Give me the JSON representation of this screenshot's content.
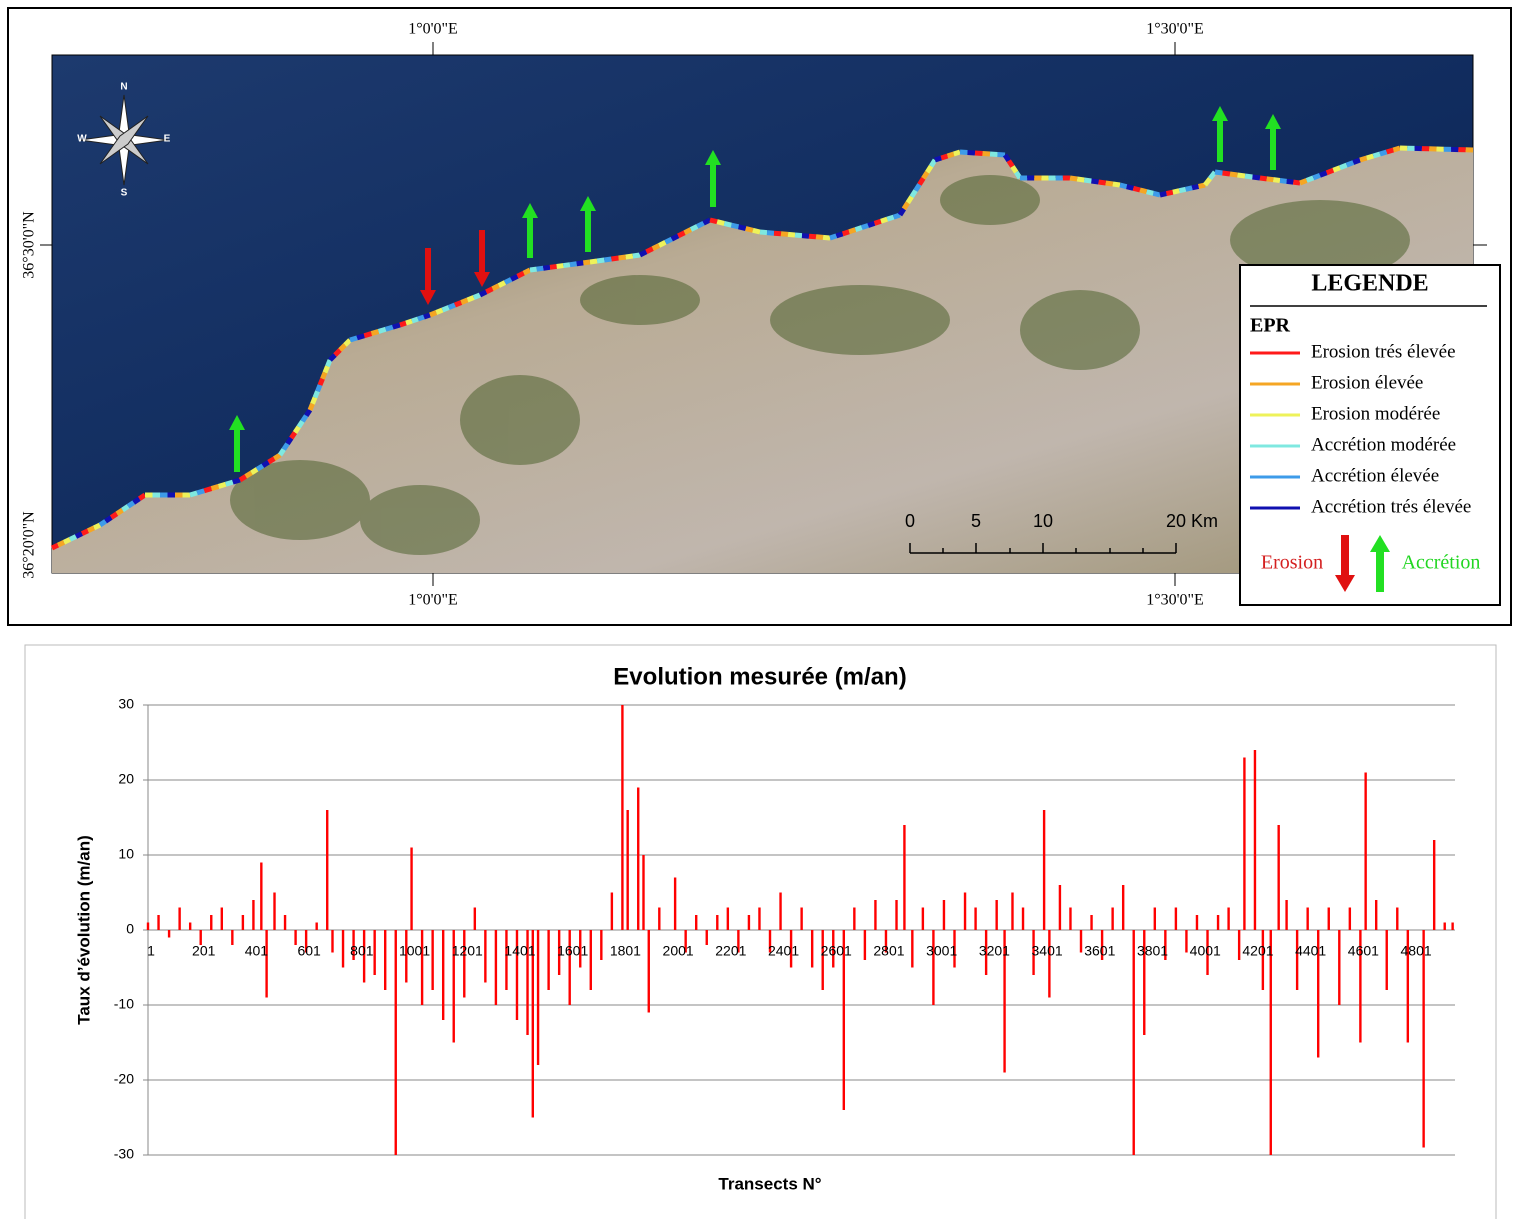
{
  "map": {
    "top_labels": [
      "1°0'0\"E",
      "1°30'0\"E"
    ],
    "bottom_labels": [
      "1°0'0\"E",
      "1°30'0\"E"
    ],
    "left_labels": [
      "36°30'0\"N",
      "36°20'0\"N"
    ],
    "compass": [
      "N",
      "S",
      "E",
      "W"
    ],
    "scale_labels": [
      "0",
      "5",
      "10",
      "20 Km"
    ],
    "legend": {
      "title": "LEGENDE",
      "subtitle": "EPR",
      "items": [
        {
          "label": "Erosion trés élevée",
          "color": "#ff1a1a"
        },
        {
          "label": "Erosion élevée",
          "color": "#f5a623"
        },
        {
          "label": "Erosion modérée",
          "color": "#eef25a"
        },
        {
          "label": "Accrétion modérée",
          "color": "#7fe8e0"
        },
        {
          "label": "Accrétion élevée",
          "color": "#3d9be9"
        },
        {
          "label": "Accrétion trés élevée",
          "color": "#1010b0"
        }
      ],
      "erosion": "Erosion",
      "accretion": "Accrétion"
    }
  },
  "chart_data": {
    "type": "bar",
    "title": "Evolution mesurée (m/an)",
    "x_label": "Transects N°",
    "y_label": "Taux d’évolution (m/an)",
    "color": "#ff0000",
    "grid": true,
    "xlim": [
      1,
      4960
    ],
    "xticks": [
      1,
      201,
      401,
      601,
      801,
      1001,
      1201,
      1401,
      1601,
      1801,
      2001,
      2201,
      2401,
      2601,
      2801,
      3001,
      3201,
      3401,
      3601,
      3801,
      4001,
      4201,
      4401,
      4601,
      4801
    ],
    "ylim": [
      -30,
      30
    ],
    "yticks": [
      -30,
      -20,
      -10,
      0,
      10,
      20,
      30
    ],
    "x": [
      1,
      41,
      81,
      121,
      161,
      201,
      241,
      281,
      321,
      361,
      401,
      431,
      451,
      481,
      521,
      561,
      601,
      641,
      681,
      701,
      741,
      781,
      821,
      861,
      901,
      941,
      981,
      1001,
      1041,
      1081,
      1121,
      1161,
      1201,
      1241,
      1281,
      1321,
      1361,
      1401,
      1441,
      1461,
      1481,
      1521,
      1561,
      1601,
      1641,
      1681,
      1721,
      1761,
      1801,
      1821,
      1861,
      1881,
      1901,
      1941,
      2001,
      2041,
      2081,
      2121,
      2161,
      2201,
      2241,
      2281,
      2321,
      2361,
      2401,
      2441,
      2481,
      2521,
      2561,
      2601,
      2641,
      2681,
      2721,
      2761,
      2801,
      2841,
      2871,
      2901,
      2941,
      2981,
      3021,
      3061,
      3101,
      3141,
      3181,
      3221,
      3251,
      3281,
      3321,
      3361,
      3401,
      3421,
      3461,
      3501,
      3541,
      3581,
      3621,
      3661,
      3701,
      3741,
      3781,
      3821,
      3861,
      3901,
      3941,
      3981,
      4021,
      4061,
      4101,
      4141,
      4161,
      4201,
      4231,
      4261,
      4291,
      4321,
      4361,
      4401,
      4441,
      4481,
      4521,
      4561,
      4601,
      4621,
      4661,
      4701,
      4741,
      4781,
      4841,
      4881,
      4921,
      4951
    ],
    "values": [
      1,
      2,
      -1,
      3,
      1,
      -2,
      2,
      3,
      -2,
      2,
      4,
      9,
      -9,
      5,
      2,
      -2,
      -3,
      1,
      16,
      -3,
      -5,
      -4,
      -7,
      -6,
      -8,
      -30,
      -7,
      11,
      -10,
      -8,
      -12,
      -15,
      -9,
      3,
      -7,
      -10,
      -8,
      -12,
      -14,
      -25,
      -18,
      -8,
      -6,
      -10,
      -5,
      -8,
      -4,
      5,
      30,
      16,
      19,
      10,
      -11,
      3,
      7,
      -3,
      2,
      -2,
      2,
      3,
      -3,
      2,
      3,
      -3,
      5,
      -5,
      3,
      -5,
      -8,
      -5,
      -24,
      3,
      -4,
      4,
      -3,
      4,
      14,
      -5,
      3,
      -10,
      4,
      -5,
      5,
      3,
      -6,
      4,
      -19,
      5,
      3,
      -6,
      16,
      -9,
      6,
      3,
      -3,
      2,
      -4,
      3,
      6,
      -30,
      -14,
      3,
      -4,
      3,
      -3,
      2,
      -6,
      2,
      3,
      -4,
      23,
      24,
      -8,
      -30,
      14,
      4,
      -8,
      3,
      -17,
      3,
      -10,
      3,
      -15,
      21,
      4,
      -8,
      3,
      -15,
      -29,
      12,
      1,
      1
    ]
  }
}
